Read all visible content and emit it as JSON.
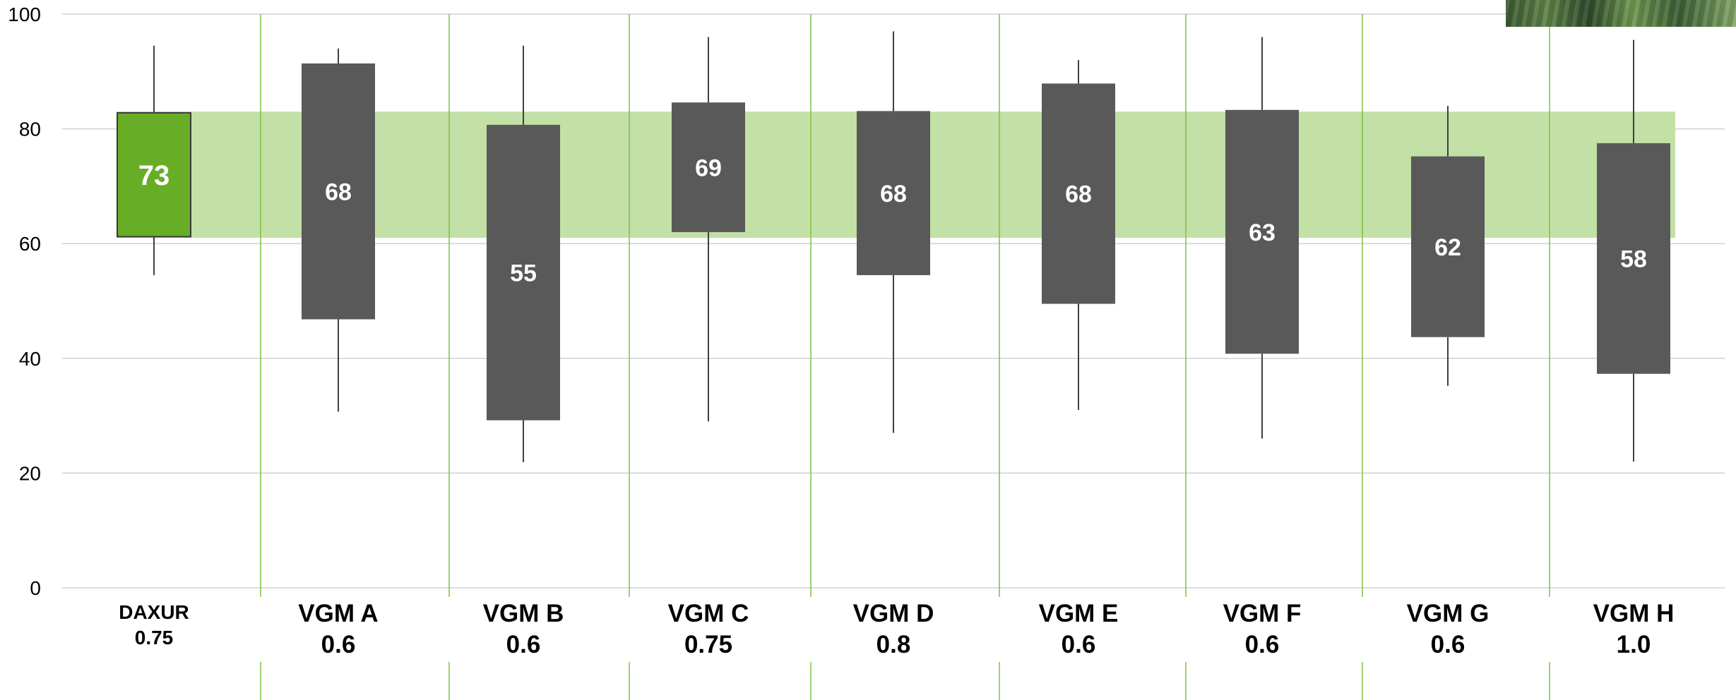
{
  "chart_data": {
    "type": "box",
    "title": "",
    "xlabel": "",
    "ylabel": "",
    "ylim": [
      0,
      100
    ],
    "yticks": [
      "0",
      "20",
      "40",
      "60",
      "80",
      "100"
    ],
    "grid": true,
    "reference_band": {
      "low": 61,
      "high": 83
    },
    "categories": [
      {
        "name": "DAXUR",
        "sub": "0.75"
      },
      {
        "name": "VGM A",
        "sub": "0.6"
      },
      {
        "name": "VGM B",
        "sub": "0.6"
      },
      {
        "name": "VGM C",
        "sub": "0.75"
      },
      {
        "name": "VGM D",
        "sub": "0.8"
      },
      {
        "name": "VGM E",
        "sub": "0.6"
      },
      {
        "name": "VGM F",
        "sub": "0.6"
      },
      {
        "name": "VGM G",
        "sub": "0.6"
      },
      {
        "name": "VGM H",
        "sub": "1.0"
      }
    ],
    "boxes": [
      {
        "min": 54.5,
        "q1": 61.2,
        "q3": 82.8,
        "max": 94.5,
        "label": "73",
        "highlight": true
      },
      {
        "min": 30.7,
        "q1": 46.8,
        "q3": 91.4,
        "max": 94.0,
        "label": "68"
      },
      {
        "min": 21.9,
        "q1": 29.2,
        "q3": 80.7,
        "max": 94.5,
        "label": "55"
      },
      {
        "min": 29.0,
        "q1": 62.0,
        "q3": 84.6,
        "max": 96.0,
        "label": "69"
      },
      {
        "min": 27.0,
        "q1": 54.5,
        "q3": 83.1,
        "max": 97.0,
        "label": "68"
      },
      {
        "min": 31.0,
        "q1": 49.5,
        "q3": 87.9,
        "max": 92.0,
        "label": "68"
      },
      {
        "min": 26.0,
        "q1": 40.8,
        "q3": 83.3,
        "max": 96.0,
        "label": "63"
      },
      {
        "min": 35.2,
        "q1": 43.7,
        "q3": 75.2,
        "max": 84.0,
        "label": "62"
      },
      {
        "min": 22.0,
        "q1": 37.3,
        "q3": 77.5,
        "max": 95.5,
        "label": "58"
      }
    ],
    "colors": {
      "highlight_box": "#67ae26",
      "box": "#595959",
      "band": "#c3e0a7",
      "separator": "#7dc242",
      "grid": "#d0d0d0",
      "whisker": "#404040",
      "box_label": "#ffffff",
      "axis_text": "#000000"
    }
  }
}
